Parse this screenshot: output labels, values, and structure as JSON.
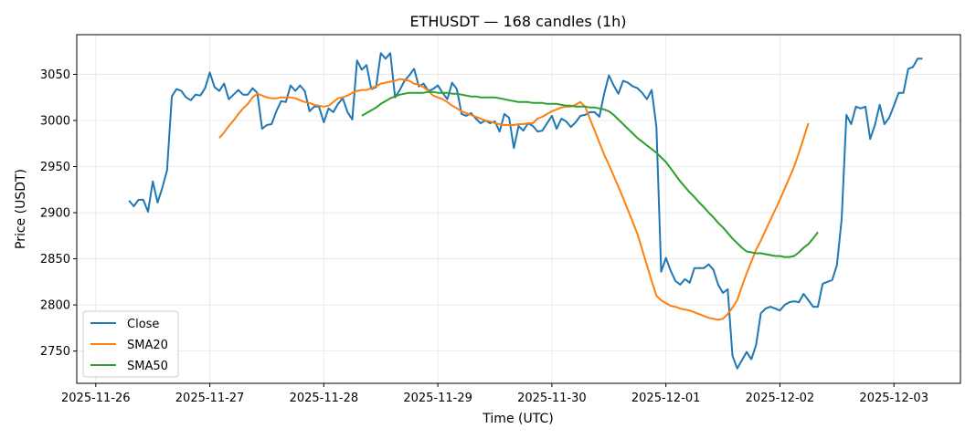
{
  "chart_data": {
    "type": "line",
    "title": "ETHUSDT — 168 candles (1h)",
    "xlabel": "Time (UTC)",
    "ylabel": "Price (USDT)",
    "x_start": "2025-11-26T07:00",
    "x_step_hours": 1,
    "xlim": [
      "2025-11-25T20:00",
      "2025-12-03T14:00"
    ],
    "ylim": [
      2715,
      3093
    ],
    "x_ticks": [
      "2025-11-26",
      "2025-11-27",
      "2025-11-28",
      "2025-11-29",
      "2025-11-30",
      "2025-12-01",
      "2025-12-02",
      "2025-12-03"
    ],
    "y_ticks": [
      2750,
      2800,
      2850,
      2900,
      2950,
      3000,
      3050
    ],
    "grid": true,
    "legend_position": "lower-left",
    "series": [
      {
        "name": "Close",
        "color": "#1f77b4",
        "start_index": 0,
        "values": [
          2913,
          2907,
          2914,
          2914,
          2901,
          2934,
          2911,
          2927,
          2946,
          3026,
          3034,
          3032,
          3025,
          3022,
          3028,
          3027,
          3035,
          3052,
          3036,
          3032,
          3040,
          3023,
          3028,
          3033,
          3028,
          3028,
          3035,
          3030,
          2991,
          2995,
          2996,
          3010,
          3021,
          3020,
          3038,
          3032,
          3038,
          3032,
          3010,
          3015,
          3015,
          2998,
          3013,
          3009,
          3018,
          3024,
          3009,
          3001,
          3065,
          3055,
          3060,
          3034,
          3036,
          3073,
          3067,
          3073,
          3025,
          3033,
          3043,
          3049,
          3056,
          3037,
          3040,
          3032,
          3034,
          3038,
          3030,
          3023,
          3041,
          3034,
          3007,
          3005,
          3008,
          3002,
          2997,
          3000,
          2997,
          2999,
          2988,
          3007,
          3003,
          2970,
          2994,
          2989,
          2997,
          2994,
          2988,
          2989,
          2997,
          3005,
          2991,
          3002,
          2999,
          2993,
          2998,
          3005,
          3006,
          3009,
          3009,
          3004,
          3029,
          3049,
          3038,
          3029,
          3043,
          3041,
          3037,
          3035,
          3030,
          3023,
          3033,
          2993,
          2836,
          2851,
          2837,
          2826,
          2822,
          2828,
          2824,
          2840,
          2840,
          2840,
          2844,
          2838,
          2822,
          2813,
          2817,
          2745,
          2731,
          2740,
          2749,
          2741,
          2757,
          2791,
          2796,
          2798,
          2796,
          2794,
          2800,
          2803,
          2804,
          2803,
          2812,
          2805,
          2798,
          2798,
          2823,
          2825,
          2827,
          2843,
          2893,
          3006,
          2996,
          3015,
          3013,
          3015,
          2980,
          2995,
          3017,
          2996,
          3003,
          3016,
          3030,
          3030,
          3056,
          3058,
          3067,
          3067
        ]
      },
      {
        "name": "SMA20",
        "color": "#ff7f0e",
        "start_index": 19,
        "values": [
          2981,
          2987,
          2994,
          3000,
          3007,
          3013,
          3018,
          3025,
          3029,
          3027,
          3025,
          3024,
          3024,
          3025,
          3025,
          3025,
          3024,
          3022,
          3020,
          3019,
          3017,
          3016,
          3015,
          3016,
          3020,
          3024,
          3025,
          3027,
          3030,
          3032,
          3033,
          3033,
          3035,
          3037,
          3040,
          3041,
          3042,
          3043,
          3045,
          3044,
          3043,
          3040,
          3039,
          3036,
          3032,
          3027,
          3025,
          3023,
          3020,
          3016,
          3013,
          3010,
          3008,
          3006,
          3004,
          3002,
          3000,
          2999,
          2997,
          2996,
          2995,
          2995,
          2995,
          2996,
          2996,
          2997,
          2997,
          3002,
          3004,
          3007,
          3010,
          3012,
          3014,
          3015,
          3015,
          3017,
          3020,
          3015,
          3002,
          2989,
          2976,
          2963,
          2952,
          2940,
          2928,
          2916,
          2903,
          2890,
          2877,
          2860,
          2843,
          2826,
          2810,
          2805,
          2802,
          2799,
          2798,
          2796,
          2795,
          2794,
          2792,
          2790,
          2788,
          2786,
          2785,
          2784,
          2785,
          2790,
          2797,
          2805,
          2820,
          2834,
          2847,
          2860,
          2870,
          2881,
          2892,
          2903,
          2914,
          2926,
          2938,
          2950,
          2965,
          2981,
          2997
        ]
      },
      {
        "name": "SMA50",
        "color": "#2ca02c",
        "start_index": 49,
        "values": [
          3005,
          3008,
          3011,
          3014,
          3018,
          3021,
          3024,
          3026,
          3028,
          3029,
          3030,
          3030,
          3030,
          3030,
          3031,
          3031,
          3030,
          3030,
          3030,
          3029,
          3029,
          3028,
          3027,
          3026,
          3026,
          3025,
          3025,
          3025,
          3025,
          3024,
          3023,
          3022,
          3021,
          3020,
          3020,
          3020,
          3019,
          3019,
          3019,
          3018,
          3018,
          3018,
          3017,
          3016,
          3016,
          3015,
          3015,
          3015,
          3014,
          3014,
          3013,
          3012,
          3010,
          3006,
          3001,
          2996,
          2991,
          2986,
          2981,
          2977,
          2973,
          2969,
          2965,
          2960,
          2955,
          2948,
          2941,
          2934,
          2928,
          2922,
          2917,
          2911,
          2906,
          2900,
          2895,
          2889,
          2884,
          2878,
          2872,
          2867,
          2862,
          2858,
          2857,
          2856,
          2856,
          2855,
          2854,
          2853,
          2853,
          2852,
          2852,
          2853,
          2857,
          2862,
          2866,
          2872,
          2879
        ]
      }
    ]
  }
}
